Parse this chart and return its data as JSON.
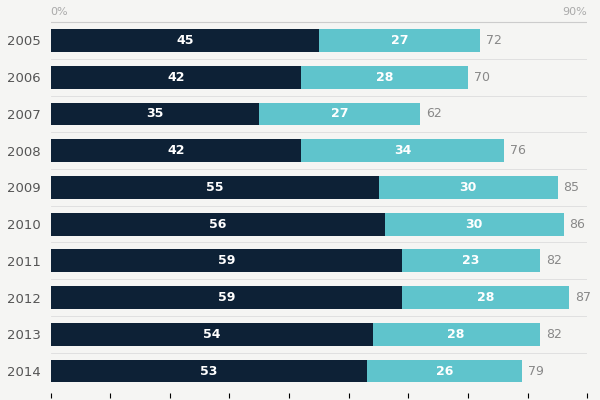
{
  "years": [
    "2005",
    "2006",
    "2007",
    "2008",
    "2009",
    "2010",
    "2011",
    "2012",
    "2013",
    "2014"
  ],
  "dark_values": [
    45,
    42,
    35,
    42,
    55,
    56,
    59,
    59,
    54,
    53
  ],
  "light_values": [
    27,
    28,
    27,
    34,
    30,
    30,
    23,
    28,
    28,
    26
  ],
  "totals": [
    72,
    70,
    62,
    76,
    85,
    86,
    82,
    87,
    82,
    79
  ],
  "dark_color": "#0d2136",
  "light_color": "#5fc4cc",
  "bg_color": "#f5f5f3",
  "text_color_dark": "#ffffff",
  "text_color_total": "#888888",
  "axis_label_left": "0%",
  "axis_label_right": "90%",
  "bar_height": 0.62,
  "xlim": [
    0,
    90
  ],
  "figsize": [
    6.0,
    4.0
  ],
  "dpi": 100
}
